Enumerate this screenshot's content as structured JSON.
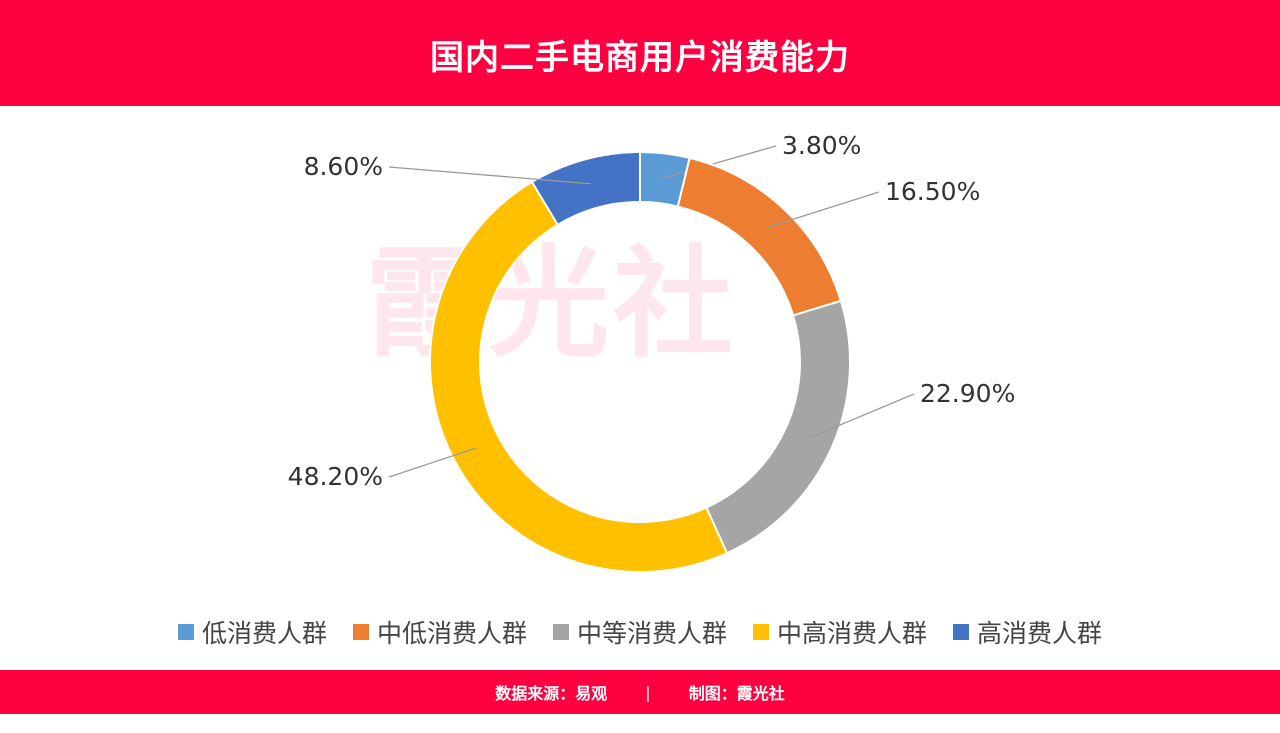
{
  "header": {
    "title": "国内二手电商用户消费能力"
  },
  "watermark": "霞光社",
  "chart_data": {
    "type": "pie",
    "title": "国内二手电商用户消费能力",
    "categories": [
      "低消费人群",
      "中低消费人群",
      "中等消费人群",
      "中高消费人群",
      "高消费人群"
    ],
    "values": [
      3.8,
      16.5,
      22.9,
      48.2,
      8.6
    ],
    "labels": [
      "3.80%",
      "16.50%",
      "22.90%",
      "48.20%",
      "8.60%"
    ],
    "colors": [
      "#5b9bd5",
      "#ed7d31",
      "#a5a5a5",
      "#ffc000",
      "#4472c4"
    ],
    "legend_position": "bottom"
  },
  "footer": {
    "source": "数据来源：易观",
    "divider": "|",
    "credit": "制图：霞光社"
  }
}
